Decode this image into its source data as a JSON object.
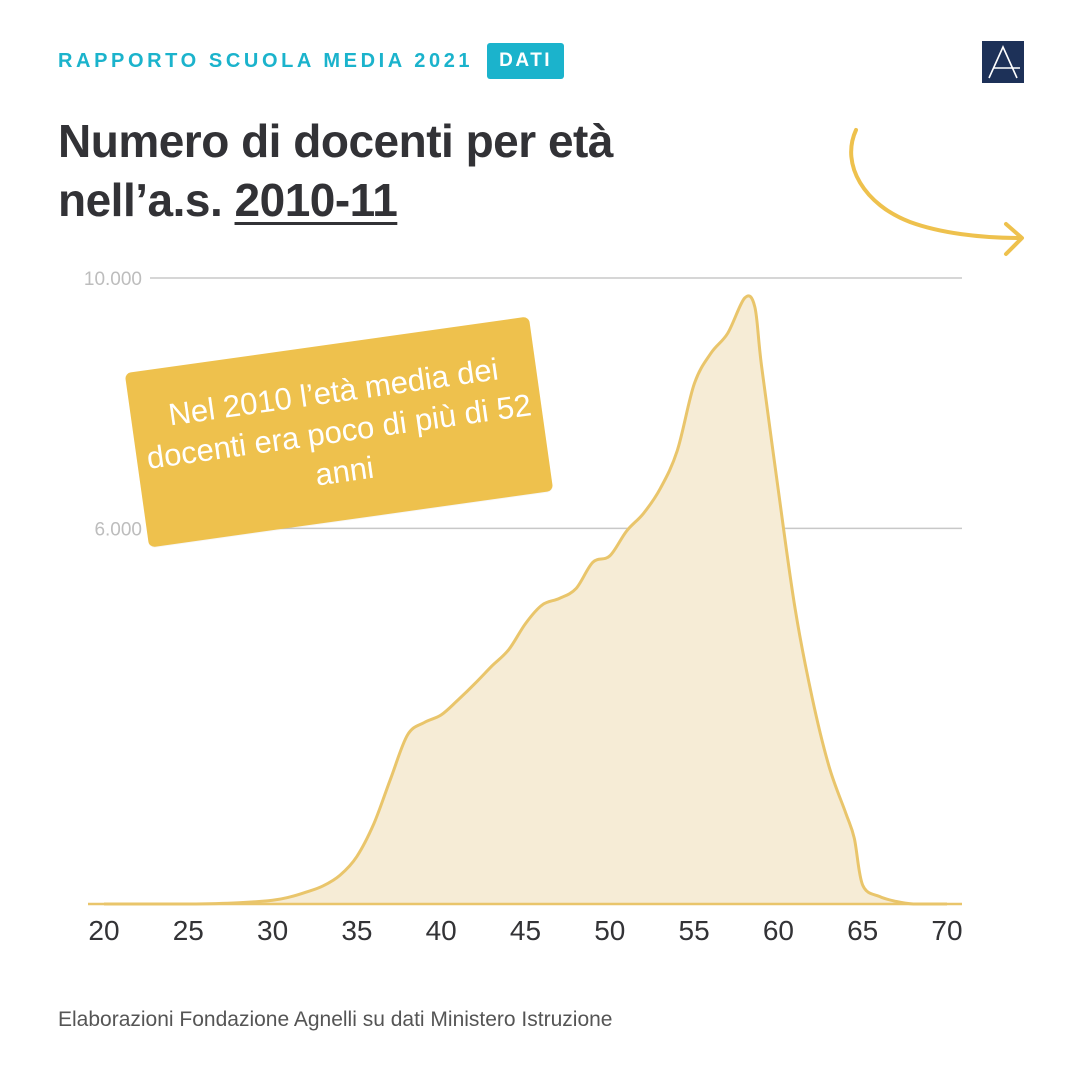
{
  "header": {
    "title": "RAPPORTO SCUOLA MEDIA 2021",
    "badge": "DATI"
  },
  "title": {
    "line1": "Numero di docenti per età",
    "line2_prefix": "nell’a.s. ",
    "line2_year": "2010-11"
  },
  "callout": {
    "text": "Nel 2010 l’età media dei docenti era poco di più di 52 anni"
  },
  "source": "Elaborazioni Fondazione Agnelli su dati Ministero Istruzione",
  "colors": {
    "accent": "#1bb3cc",
    "line": "#e9c56b",
    "fill": "#f6ecd6",
    "callout": "#eec14d",
    "logo": "#1d3158"
  },
  "logo_icon": "fondazione-agnelli-logo-icon",
  "arrow_icon": "curved-arrow-right-icon",
  "chart_data": {
    "type": "area",
    "title": "Numero di docenti per età nell’a.s. 2010-11",
    "xlabel": "",
    "ylabel": "",
    "xlim": [
      20,
      70
    ],
    "ylim": [
      0,
      10000
    ],
    "xticks": [
      20,
      25,
      30,
      35,
      40,
      45,
      50,
      55,
      60,
      65,
      70
    ],
    "y_gridlines": [
      {
        "value": 10000,
        "label": "10.000"
      },
      {
        "value": 6000,
        "label": "6.000"
      }
    ],
    "series": [
      {
        "name": "Docenti",
        "x": [
          20,
          25,
          28,
          30,
          31,
          32,
          33,
          34,
          35,
          36,
          37,
          38,
          39,
          40,
          41,
          42,
          43,
          44,
          45,
          46,
          47,
          48,
          49,
          50,
          51,
          52,
          53,
          54,
          55,
          56,
          57,
          58,
          58.6,
          59,
          60,
          61,
          62,
          63,
          64,
          64.5,
          65,
          66,
          67,
          68,
          69,
          70
        ],
        "values": [
          0,
          0,
          20,
          60,
          110,
          190,
          290,
          460,
          760,
          1280,
          2000,
          2700,
          2900,
          3020,
          3260,
          3520,
          3800,
          4060,
          4480,
          4780,
          4880,
          5040,
          5460,
          5560,
          5960,
          6240,
          6640,
          7240,
          8300,
          8800,
          9120,
          9680,
          9540,
          8600,
          6600,
          4700,
          3300,
          2200,
          1450,
          1050,
          300,
          120,
          40,
          0,
          0,
          0
        ]
      }
    ]
  }
}
